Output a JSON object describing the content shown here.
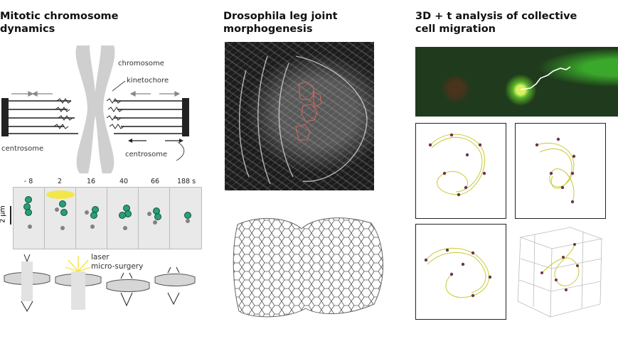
{
  "panels": {
    "left_title": "Mitotic chromosome dynamics",
    "middle_title": "Drosophila leg joint morphogenesis",
    "right_title": "3D + t analysis of collective cell migration"
  },
  "mitosis": {
    "label_chromosome": "chromosome",
    "label_kinetochore": "kinetochore",
    "label_centrosome_left": "centrosome",
    "label_centrosome_right": "centrosome",
    "time_labels": [
      "- 8",
      "2",
      "16",
      "40",
      "66",
      "188 s"
    ],
    "scale_label": "2 µm",
    "laser_label_line1": "laser",
    "laser_label_line2": "micro-surgery"
  },
  "colors": {
    "fluor_green": "#2a9d79",
    "laser_yellow": "#f3e64a",
    "track_yellow": "#c9c935",
    "node_purple": "#6a3550"
  }
}
